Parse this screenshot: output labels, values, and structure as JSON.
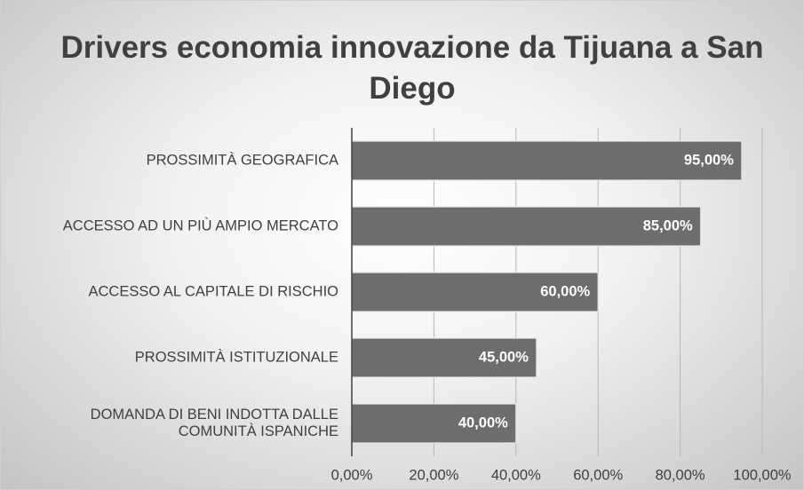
{
  "chart_data": {
    "type": "barh",
    "title": "Drivers economia innovazione da Tijuana a San Diego",
    "categories": [
      "PROSSIMITÀ GEOGRAFICA",
      "ACCESSO AD UN PIÙ AMPIO MERCATO",
      "ACCESSO AL CAPITALE DI RISCHIO",
      "PROSSIMITÀ ISTITUZIONALE",
      "DOMANDA DI BENI INDOTTA DALLE COMUNITÀ ISPANICHE"
    ],
    "values": [
      95,
      85,
      60,
      45,
      40
    ],
    "value_labels": [
      "95,00%",
      "85,00%",
      "60,00%",
      "45,00%",
      "40,00%"
    ],
    "color": "#6d6d6d",
    "xlim": [
      0,
      100
    ],
    "xticks": [
      {
        "value": 0,
        "label": "0,00%"
      },
      {
        "value": 20,
        "label": "20,00%"
      },
      {
        "value": 40,
        "label": "40,00%"
      },
      {
        "value": 60,
        "label": "60,00%"
      },
      {
        "value": 80,
        "label": "80,00%"
      },
      {
        "value": 100,
        "label": "100,00%"
      }
    ],
    "grid": true
  }
}
